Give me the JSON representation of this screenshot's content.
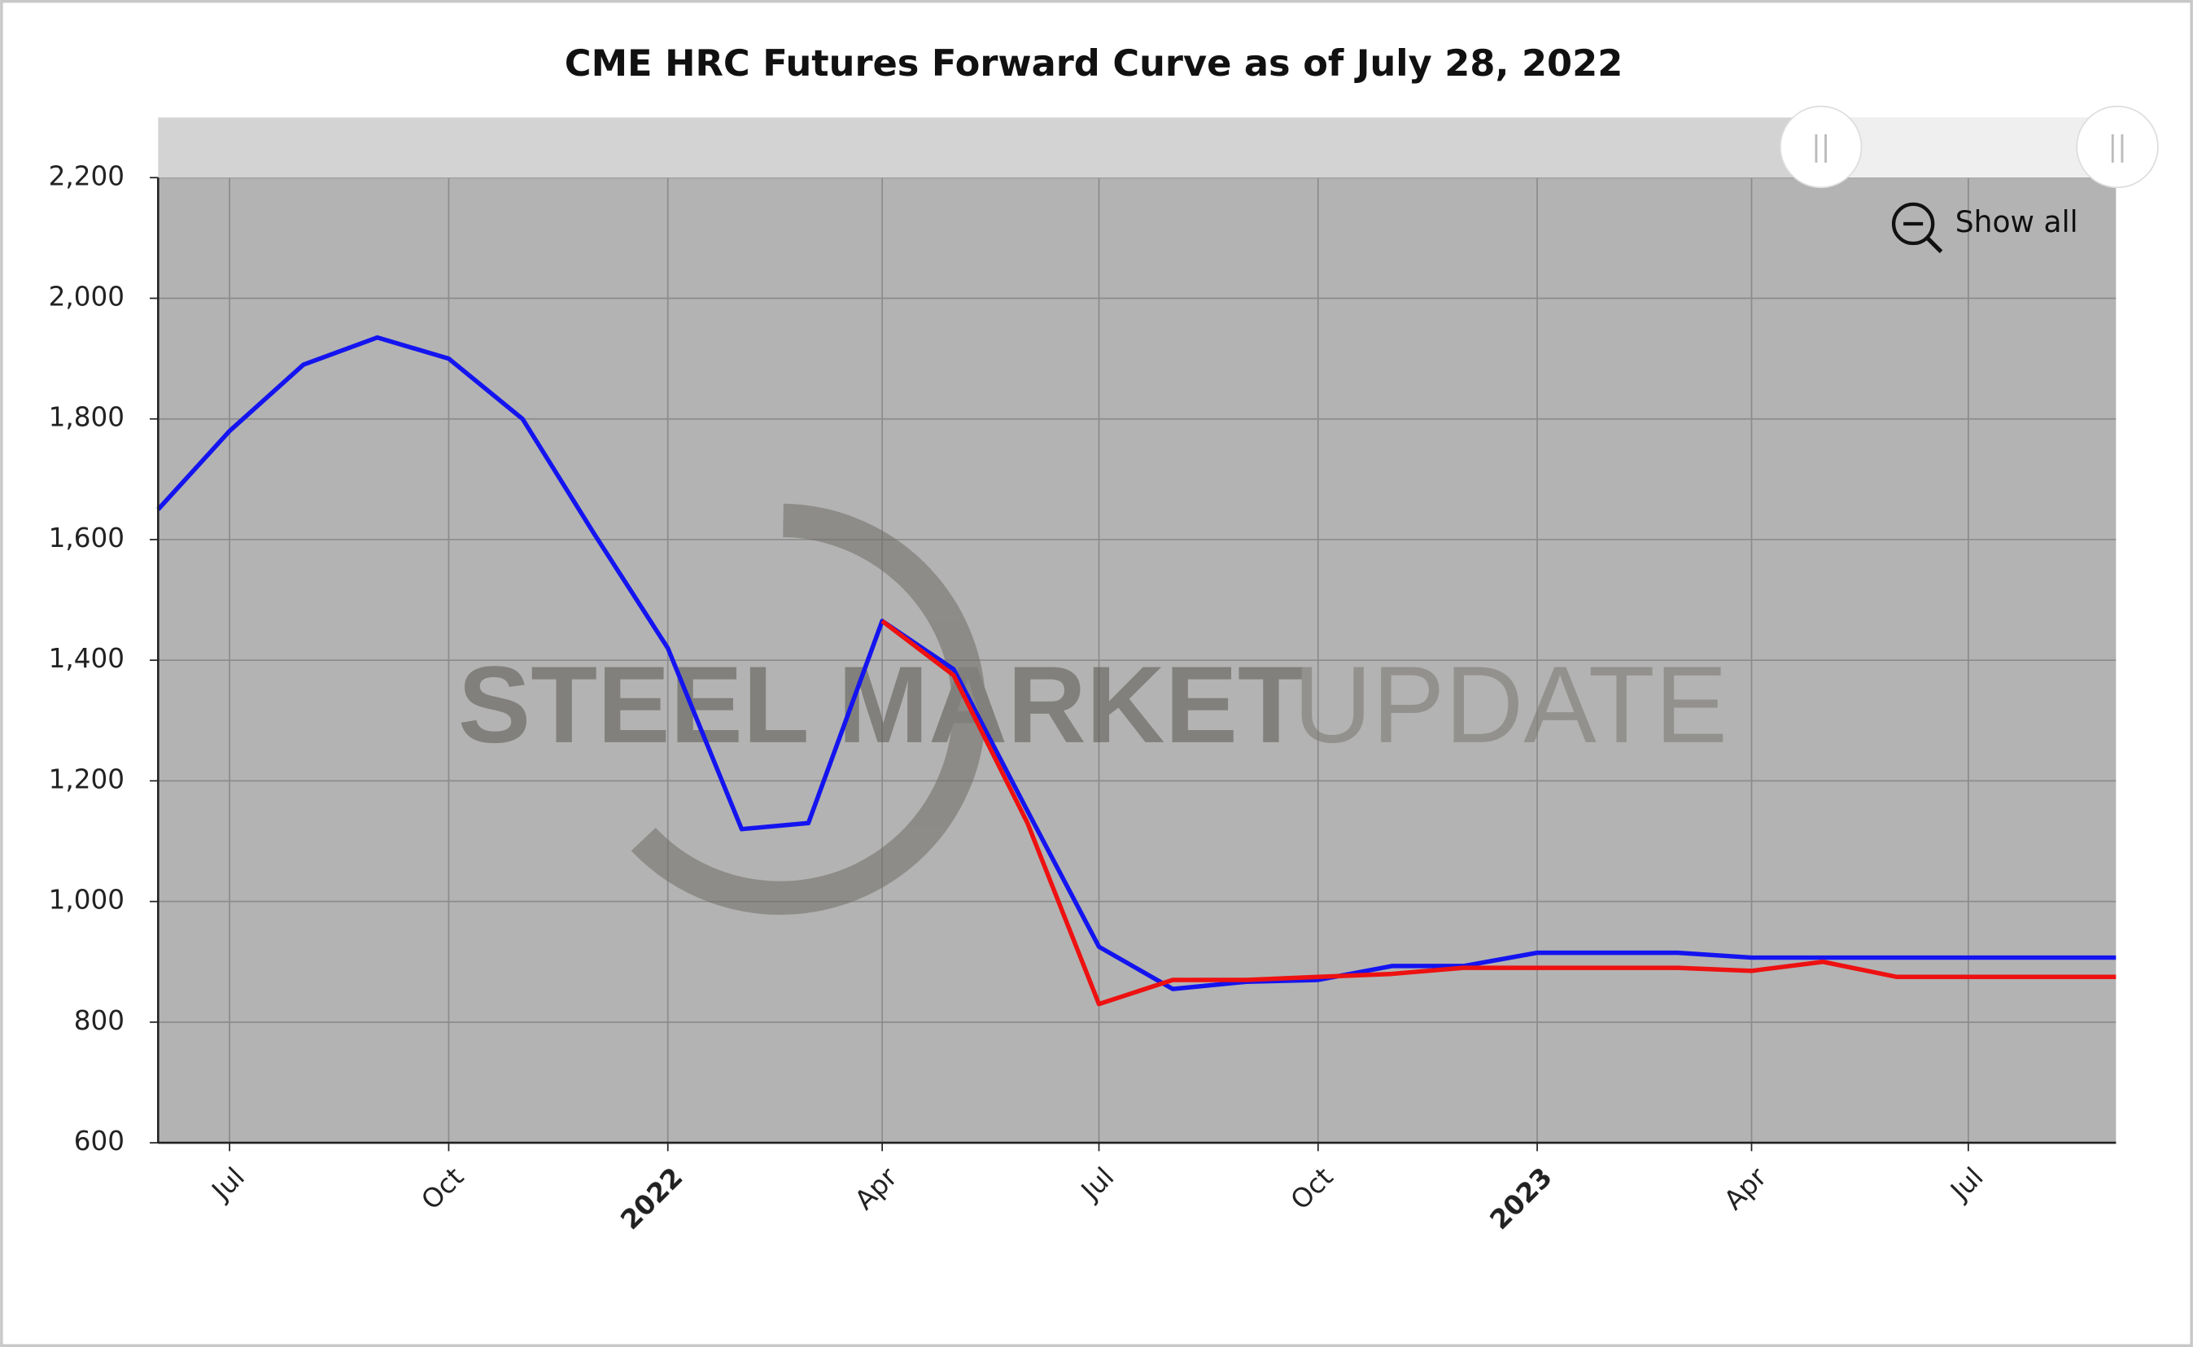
{
  "chart_data": {
    "type": "line",
    "title": "CME HRC Futures Forward Curve as of July 28, 2022",
    "watermark": [
      "STEEL MARKET",
      "UPDATE"
    ],
    "zoom_button": "Show all",
    "x": [
      "2021-06",
      "2021-07",
      "2021-08",
      "2021-09",
      "2021-10",
      "2021-11",
      "2021-12",
      "2022-01",
      "2022-02",
      "2022-03",
      "2022-04",
      "2022-05",
      "2022-06",
      "2022-07",
      "2022-08",
      "2022-09",
      "2022-10",
      "2022-11",
      "2022-12",
      "2023-01",
      "2023-02",
      "2023-03",
      "2023-04",
      "2023-05",
      "2023-06",
      "2023-07",
      "2023-08",
      "2023-09"
    ],
    "series": [
      {
        "color": "#1414f0",
        "values": [
          1650,
          1780,
          1890,
          1935,
          1900,
          1800,
          1610,
          1420,
          1120,
          1130,
          1465,
          1385,
          1150,
          925,
          855,
          867,
          870,
          893,
          893,
          915,
          915,
          915,
          907,
          907,
          907,
          907,
          907,
          907
        ]
      },
      {
        "color": "#ee1111",
        "values": [
          null,
          null,
          null,
          null,
          null,
          null,
          null,
          null,
          null,
          null,
          1465,
          1375,
          1130,
          830,
          870,
          870,
          875,
          880,
          890,
          890,
          890,
          890,
          885,
          900,
          875,
          875,
          875,
          875
        ]
      }
    ],
    "xlim": [
      "2021-06",
      "2023-09"
    ],
    "xticks": [
      {
        "value": "2021-07",
        "label": "Jul"
      },
      {
        "value": "2021-10",
        "label": "Oct"
      },
      {
        "value": "2022-01",
        "label": "2022"
      },
      {
        "value": "2022-04",
        "label": "Apr"
      },
      {
        "value": "2022-07",
        "label": "Jul"
      },
      {
        "value": "2022-10",
        "label": "Oct"
      },
      {
        "value": "2023-01",
        "label": "2023"
      },
      {
        "value": "2023-04",
        "label": "Apr"
      },
      {
        "value": "2023-07",
        "label": "Jul"
      }
    ],
    "ylim": [
      600,
      2200
    ],
    "yticks": [
      600,
      800,
      {
        "value": 1000,
        "label": "1,000"
      },
      {
        "value": 1200,
        "label": "1,200"
      },
      {
        "value": 1400,
        "label": "1,400"
      },
      {
        "value": 1600,
        "label": "1,600"
      },
      {
        "value": 1800,
        "label": "1,800"
      },
      {
        "value": 2000,
        "label": "2,000"
      },
      {
        "value": 2200,
        "label": "2,200"
      }
    ],
    "grid": true
  }
}
